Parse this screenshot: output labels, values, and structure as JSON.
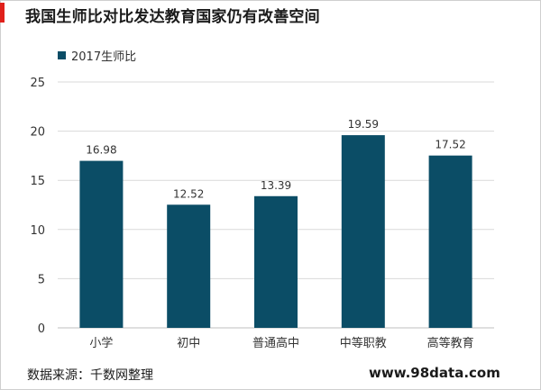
{
  "title": "我国生师比对比发达教育国家仍有改善空间",
  "colors": {
    "bar": "#0b4d66",
    "accent": "#e0201b",
    "grid": "#d9d9d9"
  },
  "chart_data": {
    "type": "bar",
    "categories": [
      "小学",
      "初中",
      "普通高中",
      "中等职教",
      "高等教育"
    ],
    "series": [
      {
        "name": "2017生师比",
        "values": [
          16.98,
          12.52,
          13.39,
          19.59,
          17.52
        ]
      }
    ],
    "value_labels": [
      "16.98",
      "12.52",
      "13.39",
      "19.59",
      "17.52"
    ],
    "ylim": [
      0,
      25
    ],
    "yticks": [
      0,
      5,
      10,
      15,
      20,
      25
    ],
    "grid": true,
    "legend_position": "top-left"
  },
  "footer": {
    "source": "数据来源：千数网整理",
    "website": "www.98data.com"
  }
}
